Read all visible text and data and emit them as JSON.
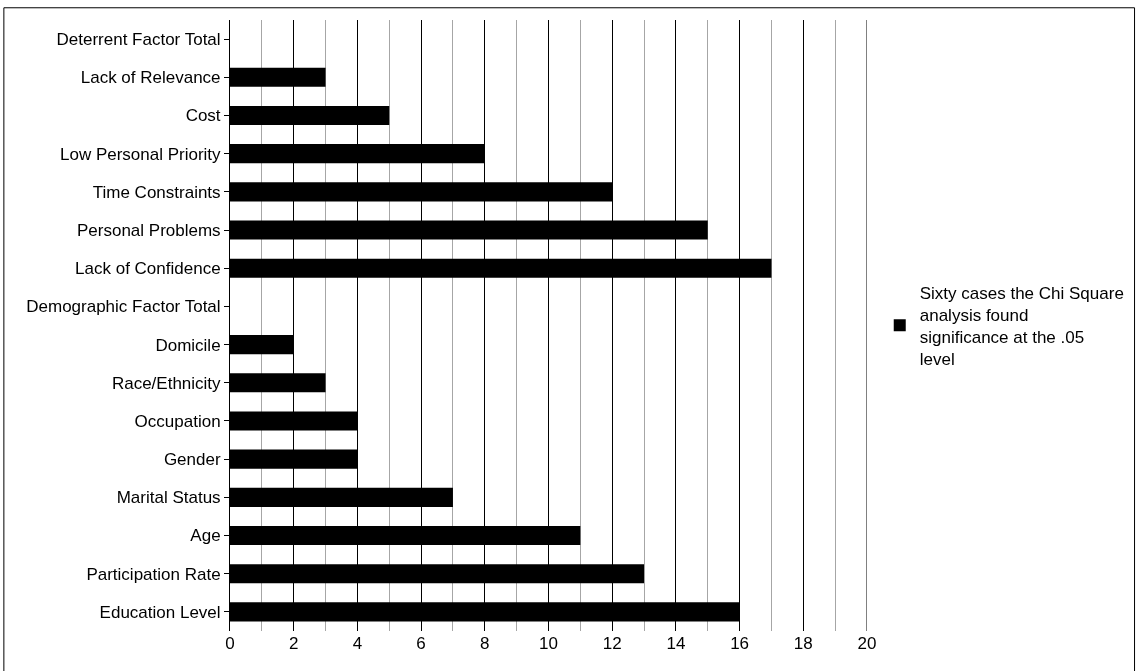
{
  "chart_data": {
    "type": "bar",
    "orientation": "horizontal",
    "categories": [
      "Deterrent Factor Total",
      "Lack of Relevance",
      "Cost",
      "Low Personal Priority",
      "Time Constraints",
      "Personal Problems",
      "Lack of Confidence",
      "Demographic Factor Total",
      "Domicile",
      "Race/Ethnicity",
      "Occupation",
      "Gender",
      "Marital Status",
      "Age",
      "Participation Rate",
      "Education Level"
    ],
    "series": [
      {
        "name": "Sixty cases the Chi Square analysis found significance at the .05 level",
        "color": "#000000",
        "values": [
          0,
          3,
          5,
          8,
          12,
          15,
          17,
          0,
          2,
          3,
          4,
          4,
          7,
          11,
          13,
          16
        ]
      }
    ],
    "xlim": [
      0,
      20
    ],
    "xticks": [
      0,
      2,
      4,
      6,
      8,
      10,
      12,
      14,
      16,
      18,
      20
    ],
    "grid": "x",
    "legend": "right"
  }
}
